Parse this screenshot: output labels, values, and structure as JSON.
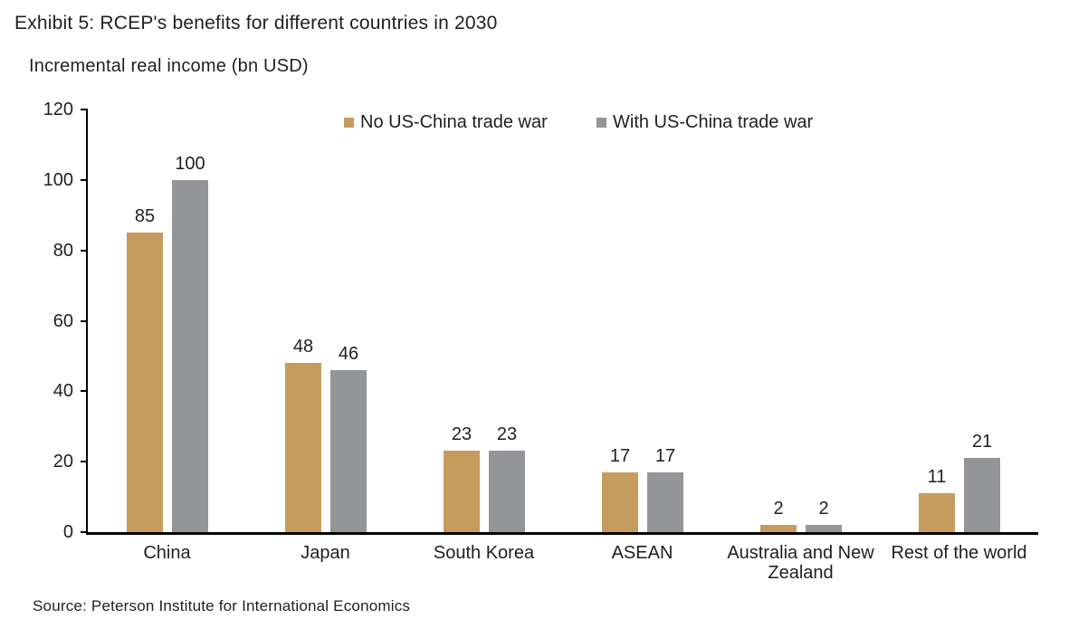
{
  "header": {
    "title": "Exhibit 5: RCEP's benefits for different countries in 2030",
    "axis_title": "Incremental real income (bn USD)"
  },
  "chart_data": {
    "type": "bar",
    "title": "Exhibit 5: RCEP's benefits for different countries in 2030",
    "ylabel": "Incremental real income (bn USD)",
    "xlabel": "",
    "categories": [
      "China",
      "Japan",
      "South Korea",
      "ASEAN",
      "Australia and New Zealand",
      "Rest of the world"
    ],
    "series": [
      {
        "name": "No US-China trade war",
        "color": "#C69C5E",
        "values": [
          85,
          48,
          23,
          17,
          2,
          11
        ]
      },
      {
        "name": "With US-China trade war",
        "color": "#939598",
        "values": [
          100,
          46,
          23,
          17,
          2,
          21
        ]
      }
    ],
    "ylim": [
      0,
      120
    ],
    "yticks": [
      0,
      20,
      40,
      60,
      80,
      100,
      120
    ],
    "ytick_step": 20,
    "grid": false,
    "legend_position": "top-center",
    "value_labels": true
  },
  "colors": {
    "bar_no_trade_war": "#C69C5E",
    "bar_with_trade_war": "#939598",
    "axis": "#000000",
    "text": "#1f1f1f",
    "background": "#ffffff"
  },
  "footer": {
    "source": "Source: Peterson Institute for International Economics"
  }
}
